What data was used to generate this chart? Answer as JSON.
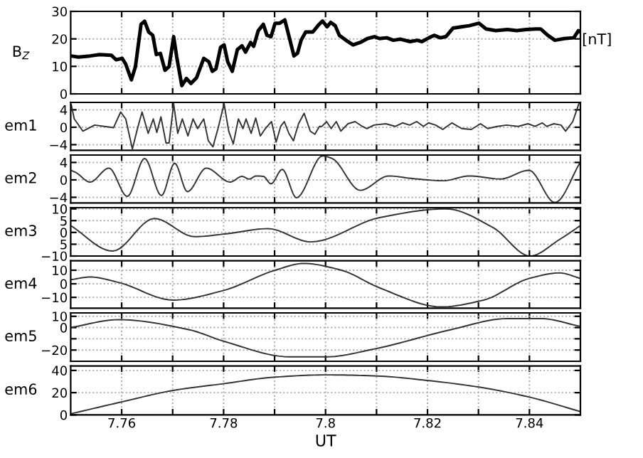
{
  "chart_data": [
    {
      "type": "line",
      "ylabel": "B$_{Z}$",
      "annotations": [
        "[nT]"
      ],
      "grid": true,
      "tick_labels": "y",
      "xlim": [
        7.75,
        7.85
      ],
      "xticks": [
        {
          "value": 7.76,
          "label": null
        },
        {
          "value": 7.77,
          "label": null
        },
        {
          "value": 7.78,
          "label": null
        },
        {
          "value": 7.79,
          "label": null
        },
        {
          "value": 7.8,
          "label": null
        },
        {
          "value": 7.81,
          "label": null
        },
        {
          "value": 7.82,
          "label": null
        },
        {
          "value": 7.83,
          "label": null
        },
        {
          "value": 7.84,
          "label": null
        }
      ],
      "ylim": [
        0,
        30
      ],
      "yticks": [
        0,
        10,
        20,
        30
      ],
      "series": [
        {
          "color": "#000000",
          "x": [
            7.75,
            7.7515,
            7.7538,
            7.7557,
            7.758,
            7.7589,
            7.7601,
            7.7608,
            7.7619,
            7.7627,
            7.7638,
            7.7645,
            7.7653,
            7.7661,
            7.7668,
            7.7676,
            7.7685,
            7.7693,
            7.7702,
            7.7708,
            7.7718,
            7.7727,
            7.7736,
            7.7747,
            7.7761,
            7.7771,
            7.7778,
            7.7785,
            7.7794,
            7.7801,
            7.7808,
            7.7817,
            7.7827,
            7.7836,
            7.7843,
            7.7853,
            7.7859,
            7.7868,
            7.7878,
            7.7885,
            7.7893,
            7.7901,
            7.791,
            7.792,
            7.7929,
            7.7938,
            7.7945,
            7.7952,
            7.7961,
            7.7975,
            7.7985,
            7.7994,
            7.8003,
            7.801,
            7.8019,
            7.8027,
            7.804,
            7.8054,
            7.8068,
            7.8082,
            7.8096,
            7.8106,
            7.812,
            7.8133,
            7.8147,
            7.8166,
            7.818,
            7.8189,
            7.8203,
            7.8213,
            7.8225,
            7.8236,
            7.825,
            7.8264,
            7.8282,
            7.8301,
            7.8315,
            7.8334,
            7.8357,
            7.8375,
            7.8394,
            7.8413,
            7.8422,
            7.8436,
            7.845,
            7.8468,
            7.8487,
            7.8496,
            7.85
          ],
          "values": [
            13.8,
            13.4,
            13.8,
            14.3,
            14,
            12.4,
            12.9,
            10.8,
            5.1,
            9.9,
            25.3,
            26.4,
            22.5,
            21.3,
            14.3,
            14.7,
            8.6,
            9.9,
            20.8,
            13.4,
            3,
            5.6,
            3.8,
            5.9,
            12.9,
            11.7,
            8.2,
            9.1,
            16.9,
            17.8,
            11.7,
            8.2,
            16.1,
            17.5,
            15.2,
            18.7,
            17.3,
            23,
            25.3,
            21.3,
            20.8,
            25.7,
            25.7,
            26.9,
            20.4,
            13.8,
            14.8,
            19.5,
            22.5,
            22.5,
            24.8,
            26.5,
            24.4,
            26,
            24.8,
            21.3,
            19.5,
            17.8,
            18.7,
            20.1,
            20.8,
            20.1,
            20.4,
            19.5,
            19.9,
            19,
            19.5,
            19,
            20.4,
            21.3,
            20.4,
            20.8,
            23.9,
            24.3,
            24.8,
            25.7,
            23.6,
            23,
            23.4,
            23,
            23.4,
            23.6,
            23.6,
            21.3,
            19.5,
            20.1,
            20.4,
            23,
            22.5
          ]
        }
      ]
    },
    {
      "type": "line",
      "ylabel": "em1",
      "grid": true,
      "tick_labels": "y",
      "xlim": [
        7.75,
        7.85
      ],
      "xticks": [
        {
          "value": 7.76,
          "label": null
        },
        {
          "value": 7.77,
          "label": null
        },
        {
          "value": 7.78,
          "label": null
        },
        {
          "value": 7.79,
          "label": null
        },
        {
          "value": 7.8,
          "label": null
        },
        {
          "value": 7.81,
          "label": null
        },
        {
          "value": 7.82,
          "label": null
        },
        {
          "value": 7.83,
          "label": null
        },
        {
          "value": 7.84,
          "label": null
        }
      ],
      "ylim": [
        -5.3,
        5.7
      ],
      "yticks": [
        -4,
        0,
        4
      ],
      "series": [
        {
          "color": "#333333",
          "x": [
            7.7501,
            7.7507,
            7.7524,
            7.7547,
            7.7566,
            7.7584,
            7.7598,
            7.7608,
            7.7621,
            7.7631,
            7.764,
            7.7652,
            7.7662,
            7.7669,
            7.7677,
            7.7687,
            7.7693,
            7.7702,
            7.771,
            7.7719,
            7.773,
            7.774,
            7.7749,
            7.7761,
            7.777,
            7.7779,
            7.7789,
            7.7801,
            7.781,
            7.7819,
            7.7829,
            7.7838,
            7.7844,
            7.7854,
            7.7863,
            7.7872,
            7.7882,
            7.7894,
            7.7903,
            7.7912,
            7.7919,
            7.7928,
            7.7937,
            7.7947,
            7.7958,
            7.797,
            7.7979,
            7.7988,
            7.7993,
            7.8002,
            7.8011,
            7.8021,
            7.803,
            7.8044,
            7.8058,
            7.8072,
            7.8081,
            7.8095,
            7.8118,
            7.8137,
            7.8151,
            7.8165,
            7.8179,
            7.8192,
            7.8202,
            7.8216,
            7.823,
            7.8248,
            7.8267,
            7.8286,
            7.8304,
            7.8318,
            7.8337,
            7.8355,
            7.8378,
            7.8397,
            7.8411,
            7.8425,
            7.8434,
            7.8448,
            7.8462,
            7.8471,
            7.8485,
            7.8497
          ],
          "values": [
            5.2,
            1.9,
            -0.9,
            0.5,
            0.2,
            -0.1,
            3.5,
            1.9,
            -5,
            -0.3,
            3.5,
            -1.4,
            1.9,
            -1.2,
            2.4,
            -3.6,
            -3.6,
            5.4,
            -1.4,
            1.9,
            -2,
            1.9,
            -0.3,
            1.9,
            -3.1,
            -4.5,
            -0.3,
            5.4,
            -0.9,
            -3.8,
            1.9,
            -0.3,
            1.9,
            -1.4,
            2.1,
            -2,
            -0.3,
            1.3,
            -3.4,
            0.2,
            1.3,
            -1.4,
            -3.1,
            0.8,
            3.2,
            -0.9,
            -1.6,
            0.2,
            0.2,
            1.3,
            -0.3,
            1.3,
            -0.9,
            0.8,
            1.3,
            0.2,
            -0.3,
            0.5,
            0.8,
            0.2,
            1,
            0.5,
            1.3,
            0.2,
            1,
            0.5,
            -0.5,
            1,
            -0.3,
            -0.5,
            0.8,
            -0.3,
            0.2,
            0.5,
            0.2,
            0.8,
            0.2,
            1,
            0.2,
            0.8,
            0.5,
            -0.9,
            1.3,
            5.4
          ]
        }
      ]
    },
    {
      "type": "line",
      "ylabel": "em2",
      "grid": true,
      "tick_labels": "y",
      "xlim": [
        7.75,
        7.85
      ],
      "xticks": [
        {
          "value": 7.76,
          "label": null
        },
        {
          "value": 7.77,
          "label": null
        },
        {
          "value": 7.78,
          "label": null
        },
        {
          "value": 7.79,
          "label": null
        },
        {
          "value": 7.8,
          "label": null
        },
        {
          "value": 7.81,
          "label": null
        },
        {
          "value": 7.82,
          "label": null
        },
        {
          "value": 7.83,
          "label": null
        },
        {
          "value": 7.84,
          "label": null
        }
      ],
      "ylim": [
        -5.3,
        5.7
      ],
      "yticks": [
        -4,
        0,
        4
      ],
      "series": [
        {
          "color": "#333333",
          "x": [
            7.75,
            7.751,
            7.7538,
            7.7575,
            7.7611,
            7.7645,
            7.7678,
            7.7704,
            7.7729,
            7.7766,
            7.7813,
            7.7836,
            7.785,
            7.7864,
            7.7878,
            7.7893,
            7.7915,
            7.7943,
            7.7994,
            7.8013,
            7.8068,
            7.8124,
            7.8171,
            7.8231,
            7.8282,
            7.8343,
            7.8399,
            7.845,
            7.85
          ],
          "values": [
            2.2,
            1.7,
            -0.5,
            2.7,
            -3.8,
            4.9,
            -3.6,
            3.8,
            -2.7,
            2.7,
            -0.5,
            0.8,
            0.2,
            0.9,
            0.8,
            -0.9,
            2.4,
            -4.1,
            5.5,
            4.9,
            -2.4,
            0.9,
            0.3,
            -0.2,
            0.9,
            0.2,
            2.2,
            -5.2,
            4.1
          ]
        }
      ]
    },
    {
      "type": "line",
      "ylabel": "em3",
      "grid": true,
      "tick_labels": "y",
      "xlim": [
        7.75,
        7.85
      ],
      "xticks": [
        {
          "value": 7.76,
          "label": null
        },
        {
          "value": 7.77,
          "label": null
        },
        {
          "value": 7.78,
          "label": null
        },
        {
          "value": 7.79,
          "label": null
        },
        {
          "value": 7.8,
          "label": null
        },
        {
          "value": 7.81,
          "label": null
        },
        {
          "value": 7.82,
          "label": null
        },
        {
          "value": 7.83,
          "label": null
        },
        {
          "value": 7.84,
          "label": null
        }
      ],
      "ylim": [
        -10,
        10.5
      ],
      "yticks": [
        {
          "value": -10,
          "label": "−10"
        },
        {
          "value": -5,
          "label": "5"
        },
        0,
        5,
        10
      ],
      "series": [
        {
          "color": "#333333",
          "x": [
            7.75,
            7.7582,
            7.7664,
            7.7743,
            7.7808,
            7.7887,
            7.7971,
            7.8106,
            7.8236,
            7.8329,
            7.8401,
            7.8459,
            7.85
          ],
          "values": [
            2.9,
            -7.9,
            5.9,
            -1.8,
            -0.5,
            1.6,
            -4,
            6.3,
            10,
            2,
            -10,
            -3,
            2.9
          ]
        }
      ]
    },
    {
      "type": "line",
      "ylabel": "em4",
      "grid": true,
      "tick_labels": "y",
      "xlim": [
        7.75,
        7.85
      ],
      "xticks": [
        {
          "value": 7.76,
          "label": null
        },
        {
          "value": 7.77,
          "label": null
        },
        {
          "value": 7.78,
          "label": null
        },
        {
          "value": 7.79,
          "label": null
        },
        {
          "value": 7.8,
          "label": null
        },
        {
          "value": 7.81,
          "label": null
        },
        {
          "value": 7.82,
          "label": null
        },
        {
          "value": 7.83,
          "label": null
        },
        {
          "value": 7.84,
          "label": null
        }
      ],
      "ylim": [
        -18,
        17
      ],
      "yticks": [
        {
          "value": -10,
          "label": "−10"
        },
        0,
        10
      ],
      "series": [
        {
          "color": "#333333",
          "x": [
            7.75,
            7.7538,
            7.7594,
            7.7701,
            7.7799,
            7.7901,
            7.7957,
            7.8031,
            7.8106,
            7.8227,
            7.831,
            7.84,
            7.8459,
            7.85
          ],
          "values": [
            3,
            5,
            1,
            -12,
            -5,
            10,
            15,
            10,
            -3,
            -17,
            -12,
            4,
            8,
            4
          ]
        }
      ]
    },
    {
      "type": "line",
      "ylabel": "em5",
      "grid": true,
      "tick_labels": "y",
      "xlim": [
        7.75,
        7.85
      ],
      "xticks": [
        {
          "value": 7.76,
          "label": null
        },
        {
          "value": 7.77,
          "label": null
        },
        {
          "value": 7.78,
          "label": null
        },
        {
          "value": 7.79,
          "label": null
        },
        {
          "value": 7.8,
          "label": null
        },
        {
          "value": 7.81,
          "label": null
        },
        {
          "value": 7.82,
          "label": null
        },
        {
          "value": 7.83,
          "label": null
        },
        {
          "value": 7.84,
          "label": null
        }
      ],
      "ylim": [
        -30,
        13
      ],
      "yticks": [
        {
          "value": -20,
          "label": "−20"
        },
        {
          "value": -10,
          "label": null
        },
        0,
        10
      ],
      "series": [
        {
          "color": "#333333",
          "x": [
            7.75,
            7.7594,
            7.7733,
            7.7799,
            7.7929,
            7.8003,
            7.8096,
            7.8245,
            7.8357,
            7.8422,
            7.85
          ],
          "values": [
            0,
            7,
            -2,
            -12,
            -26,
            -26,
            -19,
            -2,
            8,
            8,
            1
          ]
        }
      ]
    },
    {
      "type": "line",
      "ylabel": "em6",
      "xlabel": "UT",
      "grid": true,
      "xlim": [
        7.75,
        7.85
      ],
      "xticks": [
        7.76,
        {
          "value": 7.77,
          "label": null
        },
        7.78,
        {
          "value": 7.79,
          "label": null
        },
        7.8,
        {
          "value": 7.81,
          "label": null
        },
        7.82,
        {
          "value": 7.83,
          "label": null
        },
        7.84
      ],
      "ylim": [
        0,
        44
      ],
      "yticks": [
        0,
        20,
        40
      ],
      "series": [
        {
          "color": "#333333",
          "x": [
            7.75,
            7.7603,
            7.7701,
            7.7799,
            7.7901,
            7.8003,
            7.8101,
            7.8199,
            7.8301,
            7.84,
            7.85
          ],
          "values": [
            1,
            12,
            22,
            28,
            34,
            36,
            35,
            31,
            25,
            16,
            3
          ]
        }
      ]
    }
  ]
}
